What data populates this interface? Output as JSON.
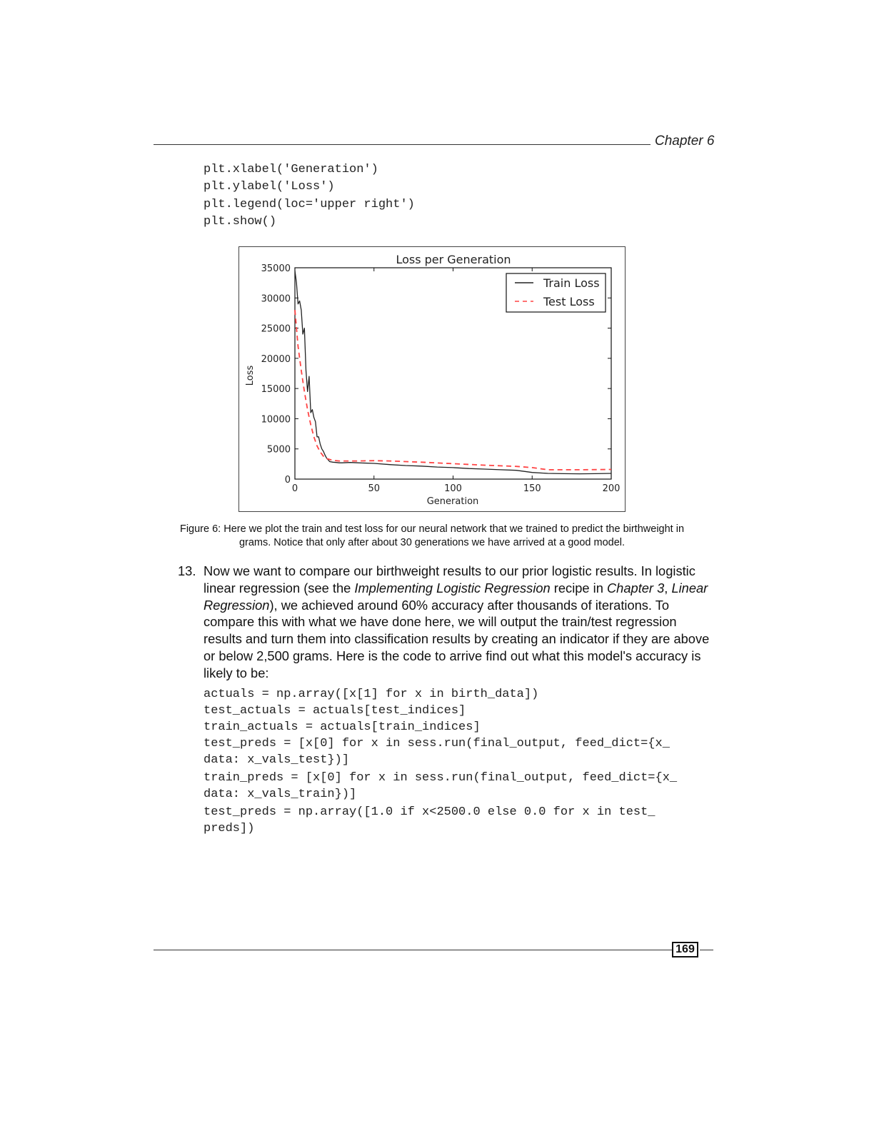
{
  "header": {
    "chapter": "Chapter 6"
  },
  "code_top": [
    "plt.xlabel('Generation')",
    "plt.ylabel('Loss')",
    "plt.legend(loc='upper right')",
    "plt.show()"
  ],
  "chart_data": {
    "type": "line",
    "title": "Loss per Generation",
    "xlabel": "Generation",
    "ylabel": "Loss",
    "xlim": [
      0,
      200
    ],
    "ylim": [
      0,
      35000
    ],
    "xticks": [
      "0",
      "50",
      "100",
      "150",
      "200"
    ],
    "yticks": [
      "0",
      "5000",
      "10000",
      "15000",
      "20000",
      "25000",
      "30000",
      "35000"
    ],
    "legend_position": "upper right",
    "series": [
      {
        "name": "Train Loss",
        "color": "#222222",
        "style": "solid",
        "x": [
          0,
          1,
          2,
          3,
          4,
          5,
          6,
          7,
          8,
          9,
          10,
          11,
          12,
          13,
          14,
          15,
          16,
          17,
          18,
          19,
          20,
          22,
          24,
          26,
          28,
          30,
          35,
          40,
          50,
          60,
          70,
          80,
          90,
          100,
          110,
          120,
          130,
          140,
          150,
          160,
          170,
          180,
          190,
          200
        ],
        "y": [
          34500,
          32500,
          29000,
          29500,
          28000,
          24000,
          25000,
          18000,
          14500,
          17000,
          11000,
          11500,
          10200,
          9500,
          7000,
          7000,
          5800,
          5000,
          4600,
          4000,
          3500,
          2900,
          2800,
          2750,
          2700,
          2700,
          2750,
          2700,
          2600,
          2400,
          2250,
          2150,
          2000,
          1900,
          1750,
          1650,
          1550,
          1450,
          1100,
          950,
          900,
          880,
          900,
          950
        ]
      },
      {
        "name": "Test Loss",
        "color": "#ff4444",
        "style": "dashed",
        "x": [
          0,
          2,
          4,
          6,
          8,
          10,
          12,
          14,
          16,
          18,
          20,
          24,
          28,
          32,
          40,
          50,
          60,
          80,
          100,
          120,
          140,
          150,
          160,
          180,
          200
        ],
        "y": [
          28000,
          22000,
          18000,
          14500,
          11500,
          9000,
          7000,
          5500,
          4500,
          3800,
          3400,
          3100,
          3000,
          3000,
          3000,
          3050,
          3000,
          2800,
          2550,
          2300,
          2100,
          1900,
          1550,
          1550,
          1600
        ]
      }
    ]
  },
  "caption": {
    "line1": "Figure 6: Here we plot the train and test loss for our neural network that we trained to predict the birthweight in",
    "line2": "grams. Notice that only after about 30 generations we have arrived at a good model."
  },
  "step": {
    "number": "13.",
    "t1": "Now we want to compare our birthweight results to our prior logistic results. In logistic linear regression (see the ",
    "i1": "Implementing Logistic Regression",
    "t2": " recipe in ",
    "i2": "Chapter 3",
    "t3": ", ",
    "i3": "Linear Regression",
    "t4": "), we achieved around 60% accuracy after thousands of iterations. To compare this with what we have done here, we will output the train/test regression results and turn them into classification results by creating an indicator if they are above or below 2,500 grams. Here is the code to arrive find out what this model's accuracy is likely to be:"
  },
  "code_bottom": [
    "actuals = np.array([x[1] for x in birth_data])",
    "test_actuals = actuals[test_indices]",
    "train_actuals = actuals[train_indices]",
    "test_preds = [x[0] for x in sess.run(final_output, feed_dict={x_",
    "data: x_vals_test})]",
    "train_preds = [x[0] for x in sess.run(final_output, feed_dict={x_",
    "data: x_vals_train})]",
    "test_preds = np.array([1.0 if x<2500.0 else 0.0 for x in test_",
    "preds])"
  ],
  "footer": {
    "page": "169"
  }
}
